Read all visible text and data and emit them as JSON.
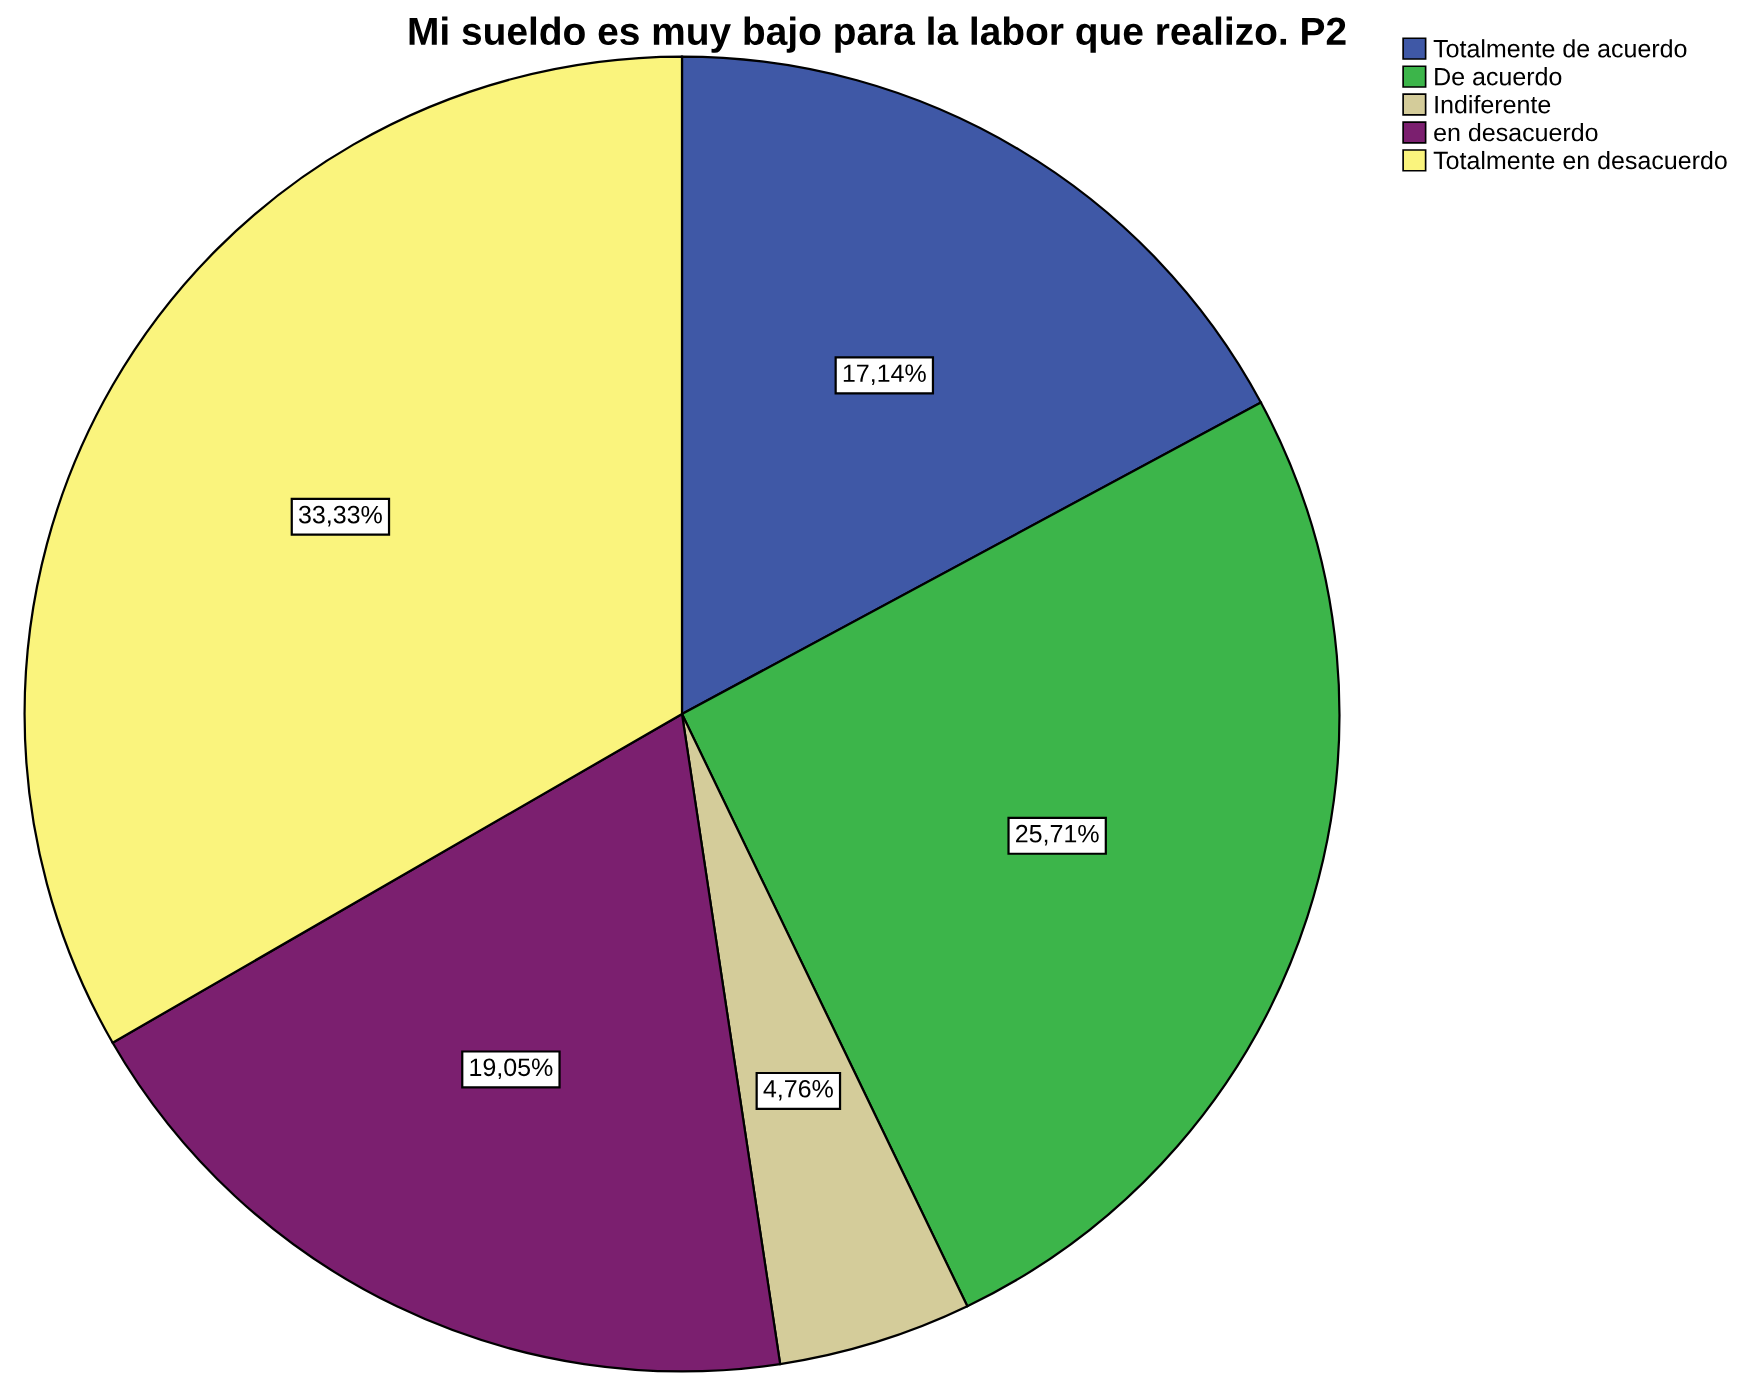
{
  "chart_data": {
    "type": "pie",
    "title": "Mi sueldo es muy bajo para la labor que realizo. P2",
    "categories": [
      "Totalmente de acuerdo",
      "De acuerdo",
      "Indiferente",
      "en desacuerdo",
      "Totalmente en desacuerdo"
    ],
    "values": [
      17.14,
      25.71,
      4.76,
      19.05,
      33.33
    ],
    "colors": [
      "#3f58a6",
      "#3cb54a",
      "#d4cc9a",
      "#7b1f6f",
      "#faf47d"
    ],
    "value_labels": [
      "17,14%",
      "25,71%",
      "4,76%",
      "19,05%",
      "33,33%"
    ],
    "legend": "top right"
  }
}
